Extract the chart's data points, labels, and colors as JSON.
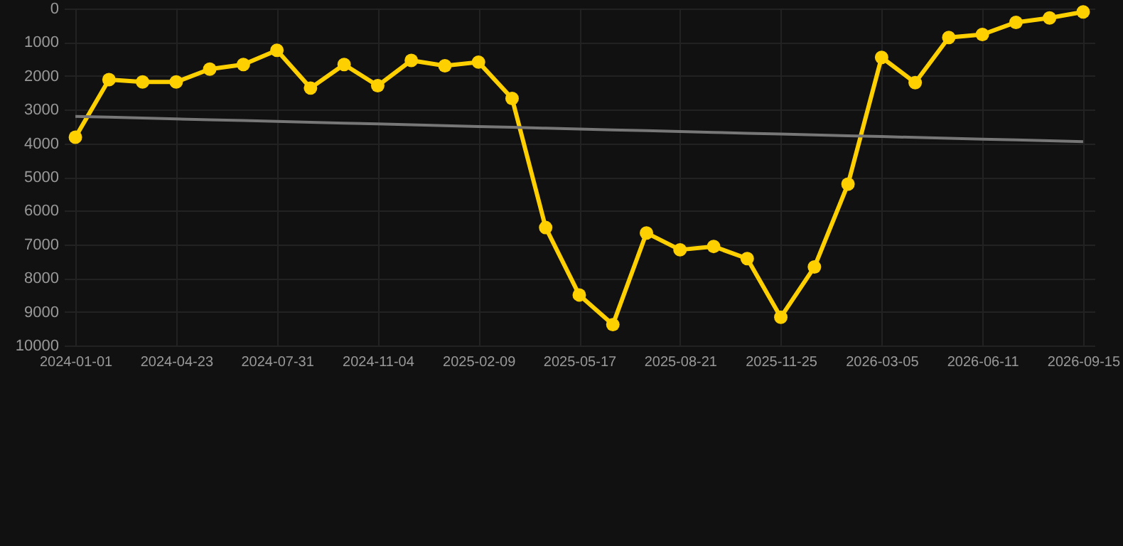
{
  "chart_data": {
    "type": "line",
    "categories": [
      "2024-01-01",
      null,
      null,
      "2024-04-23",
      null,
      null,
      "2024-07-31",
      null,
      null,
      "2024-11-04",
      null,
      null,
      "2025-02-09",
      null,
      null,
      "2025-05-17",
      null,
      null,
      "2025-08-21",
      null,
      null,
      "2025-11-25",
      null,
      null,
      "2026-03-05",
      null,
      null,
      "2026-06-11",
      null,
      null,
      "2026-09-15"
    ],
    "series": [
      {
        "color": "#ffd000",
        "marker": "circle",
        "values": [
          3820,
          2110,
          2180,
          2180,
          1800,
          1660,
          1240,
          2360,
          1660,
          2290,
          1540,
          1700,
          1590,
          2670,
          6500,
          8500,
          9380,
          6660,
          7160,
          7060,
          7420,
          9160,
          7670,
          5210,
          1450,
          2200,
          860,
          770,
          410,
          280,
          100
        ]
      },
      {
        "color": "#777777",
        "marker": "none",
        "values": [
          3200,
          3225,
          3250,
          3275,
          3300,
          3325,
          3350,
          3375,
          3400,
          3425,
          3450,
          3475,
          3500,
          3525,
          3550,
          3575,
          3600,
          3625,
          3650,
          3675,
          3700,
          3725,
          3750,
          3775,
          3800,
          3825,
          3850,
          3875,
          3900,
          3925,
          3950
        ]
      }
    ],
    "ylim": [
      10000,
      0
    ],
    "yticks": [
      0,
      1000,
      2000,
      3000,
      4000,
      5000,
      6000,
      7000,
      8000,
      9000,
      10000
    ],
    "grid": true
  }
}
